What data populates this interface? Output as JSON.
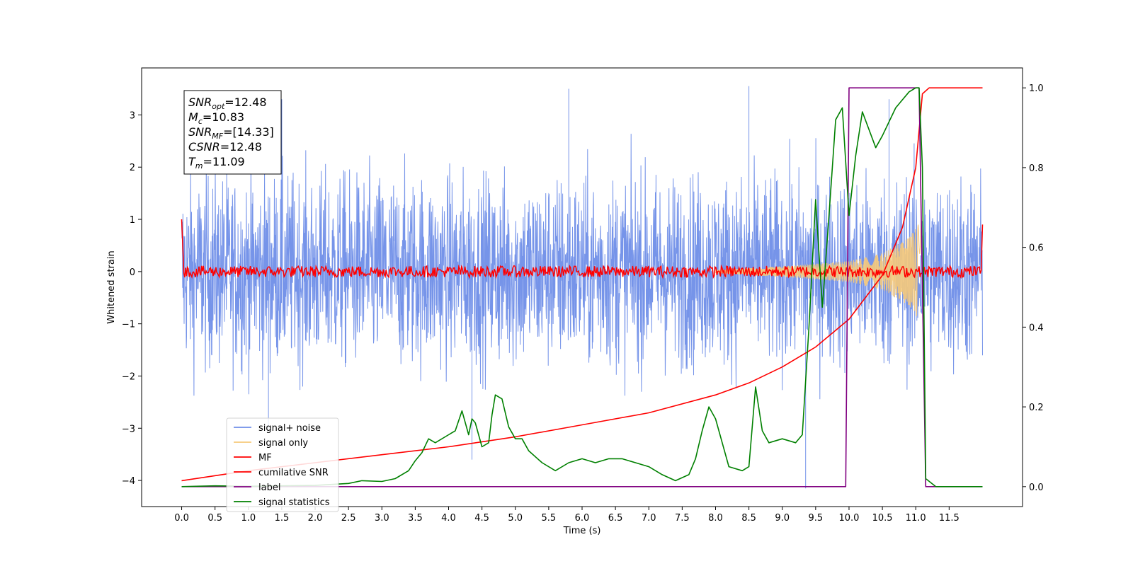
{
  "chart_data": {
    "type": "line",
    "xlabel": "Time (s)",
    "ylabel": "Whitened strain",
    "xlim": [
      -0.6,
      12.6
    ],
    "ylim_left": [
      -4.5,
      3.9
    ],
    "ylim_right": [
      -0.05,
      1.05
    ],
    "x_ticks": [
      "0.0",
      "0.5",
      "1.0",
      "1.5",
      "2.0",
      "2.5",
      "3.0",
      "3.5",
      "4.0",
      "4.5",
      "5.0",
      "5.5",
      "6.0",
      "6.5",
      "7.0",
      "7.5",
      "8.0",
      "8.5",
      "9.0",
      "9.5",
      "10.0",
      "10.5",
      "11.0",
      "11.5"
    ],
    "y_ticks_left": [
      "3",
      "2",
      "1",
      "0",
      "−1",
      "−2",
      "−3",
      "−4"
    ],
    "y_ticks_right": [
      "0.0",
      "0.2",
      "0.4",
      "0.6",
      "0.8",
      "1.0"
    ],
    "legend": {
      "placement": "lower-left",
      "entries": [
        {
          "label": "signal+ noise",
          "color": "#6f8ee8"
        },
        {
          "label": "signal only",
          "color": "#f6c97a"
        },
        {
          "label": "MF",
          "color": "#ff0000"
        },
        {
          "label": "cumilative SNR",
          "color": "#ff0000"
        },
        {
          "label": "label",
          "color": "#800080"
        },
        {
          "label": "signal statistics",
          "color": "#008000"
        }
      ]
    },
    "annotation": [
      {
        "name": "SNR",
        "sub": "opt",
        "value": "=12.48"
      },
      {
        "name": "M",
        "sub": "c",
        "value": "=10.83"
      },
      {
        "name": "SNR",
        "sub": "MF",
        "value": "=[14.33]"
      },
      {
        "name": "CSNR",
        "sub": "",
        "value": "=12.48"
      },
      {
        "name": "T",
        "sub": "m",
        "value": "=11.09"
      }
    ],
    "series": [
      {
        "name": "signal+ noise",
        "axis": "left",
        "color": "#6f8ee8",
        "envelope": [
          -2.2,
          2.4
        ],
        "t_range": [
          0.0,
          12.0
        ],
        "spikes": [
          [
            1.5,
            3.3
          ],
          [
            5.8,
            3.5
          ],
          [
            8.5,
            3.55
          ],
          [
            10.6,
            3.3
          ],
          [
            9.35,
            -4.15
          ],
          [
            1.3,
            -3.0
          ],
          [
            4.35,
            -3.6
          ]
        ]
      },
      {
        "name": "signal only",
        "axis": "left",
        "color": "#f6c97a",
        "chirp_amplitude": [
          [
            8.0,
            0.03
          ],
          [
            9.0,
            0.1
          ],
          [
            10.0,
            0.2
          ],
          [
            10.5,
            0.35
          ],
          [
            10.9,
            0.65
          ],
          [
            11.09,
            1.0
          ]
        ]
      },
      {
        "name": "MF",
        "axis": "left",
        "color": "#ff0000",
        "baseline": 0.0,
        "endpoints": [
          [
            0.0,
            1.0
          ],
          [
            12.0,
            0.9
          ]
        ]
      },
      {
        "name": "cumilative SNR",
        "axis": "right",
        "color": "#ff0000",
        "x": [
          0.0,
          1.0,
          2.0,
          3.0,
          4.0,
          5.0,
          6.0,
          7.0,
          8.0,
          8.5,
          9.0,
          9.5,
          10.0,
          10.5,
          10.8,
          11.0,
          11.1,
          11.2,
          12.0
        ],
        "y": [
          0.015,
          0.04,
          0.06,
          0.08,
          0.1,
          0.125,
          0.155,
          0.185,
          0.23,
          0.26,
          0.3,
          0.35,
          0.42,
          0.53,
          0.65,
          0.8,
          0.985,
          1.0,
          1.0
        ]
      },
      {
        "name": "label",
        "axis": "right",
        "color": "#800080",
        "x": [
          0.0,
          9.95,
          10.0,
          11.05,
          11.15,
          12.0
        ],
        "y": [
          0.0,
          0.0,
          1.0,
          1.0,
          0.0,
          0.0
        ]
      },
      {
        "name": "signal statistics",
        "axis": "right",
        "color": "#008000",
        "x": [
          0.0,
          0.5,
          1.0,
          1.5,
          2.0,
          2.5,
          2.7,
          3.0,
          3.2,
          3.4,
          3.5,
          3.6,
          3.7,
          3.8,
          4.0,
          4.1,
          4.2,
          4.3,
          4.35,
          4.4,
          4.5,
          4.6,
          4.65,
          4.7,
          4.8,
          4.9,
          5.0,
          5.1,
          5.2,
          5.4,
          5.6,
          5.8,
          6.0,
          6.2,
          6.4,
          6.6,
          6.8,
          7.0,
          7.2,
          7.4,
          7.6,
          7.7,
          7.8,
          7.9,
          8.0,
          8.2,
          8.4,
          8.5,
          8.6,
          8.7,
          8.8,
          9.0,
          9.2,
          9.3,
          9.4,
          9.5,
          9.6,
          9.7,
          9.8,
          9.9,
          10.0,
          10.1,
          10.2,
          10.4,
          10.5,
          10.7,
          10.9,
          11.0,
          11.05,
          11.1,
          11.15,
          11.3,
          12.0
        ],
        "y": [
          0.0,
          0.002,
          0.001,
          0.002,
          0.003,
          0.008,
          0.015,
          0.013,
          0.02,
          0.04,
          0.065,
          0.085,
          0.12,
          0.11,
          0.13,
          0.14,
          0.19,
          0.13,
          0.17,
          0.16,
          0.1,
          0.11,
          0.18,
          0.23,
          0.22,
          0.15,
          0.12,
          0.12,
          0.09,
          0.06,
          0.04,
          0.06,
          0.07,
          0.06,
          0.07,
          0.07,
          0.06,
          0.05,
          0.03,
          0.015,
          0.03,
          0.07,
          0.14,
          0.2,
          0.17,
          0.05,
          0.04,
          0.05,
          0.25,
          0.14,
          0.11,
          0.12,
          0.11,
          0.13,
          0.4,
          0.72,
          0.45,
          0.68,
          0.92,
          0.95,
          0.68,
          0.83,
          0.94,
          0.85,
          0.88,
          0.95,
          0.99,
          1.0,
          1.0,
          0.8,
          0.02,
          0.0,
          0.0
        ]
      }
    ]
  }
}
